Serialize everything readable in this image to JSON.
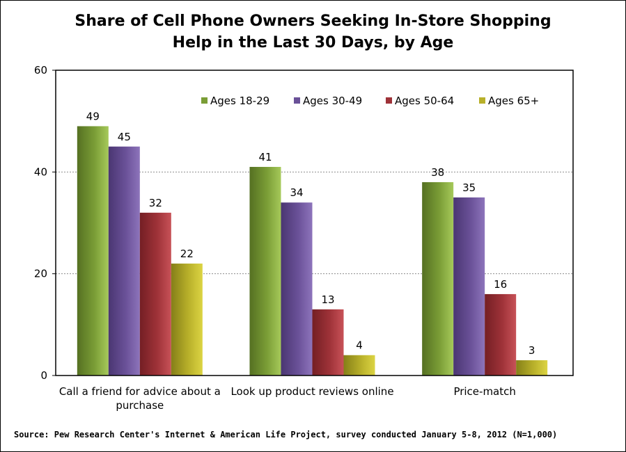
{
  "chart_data": {
    "type": "bar",
    "title_lines": [
      "Share of Cell Phone Owners Seeking In-Store Shopping",
      "Help in the Last 30 Days, by Age"
    ],
    "categories": [
      [
        "Call a friend for advice about a",
        "purchase"
      ],
      [
        "Look up product reviews online"
      ],
      [
        "Price-match"
      ]
    ],
    "series": [
      {
        "name": "Ages 18-29",
        "values": [
          49,
          41,
          38
        ],
        "color": "#7a9d36",
        "color_light": "#a6c95a",
        "color_dark": "#557022"
      },
      {
        "name": "Ages 30-49",
        "values": [
          45,
          34,
          35
        ],
        "color": "#6a5198",
        "color_light": "#8d74bb",
        "color_dark": "#4a3672"
      },
      {
        "name": "Ages 50-64",
        "values": [
          32,
          13,
          16
        ],
        "color": "#9e3238",
        "color_light": "#c85258",
        "color_dark": "#741f24"
      },
      {
        "name": "Ages 65+",
        "values": [
          22,
          4,
          3
        ],
        "color": "#b8b02a",
        "color_light": "#dcd443",
        "color_dark": "#857f18"
      }
    ],
    "ylim": [
      0,
      60
    ],
    "yticks": [
      0,
      20,
      40,
      60
    ],
    "grid": true,
    "legend_position": "top-right"
  },
  "source_note": "Source: Pew Research Center's Internet & American Life Project, survey conducted January 5-8, 2012 (N=1,000)"
}
